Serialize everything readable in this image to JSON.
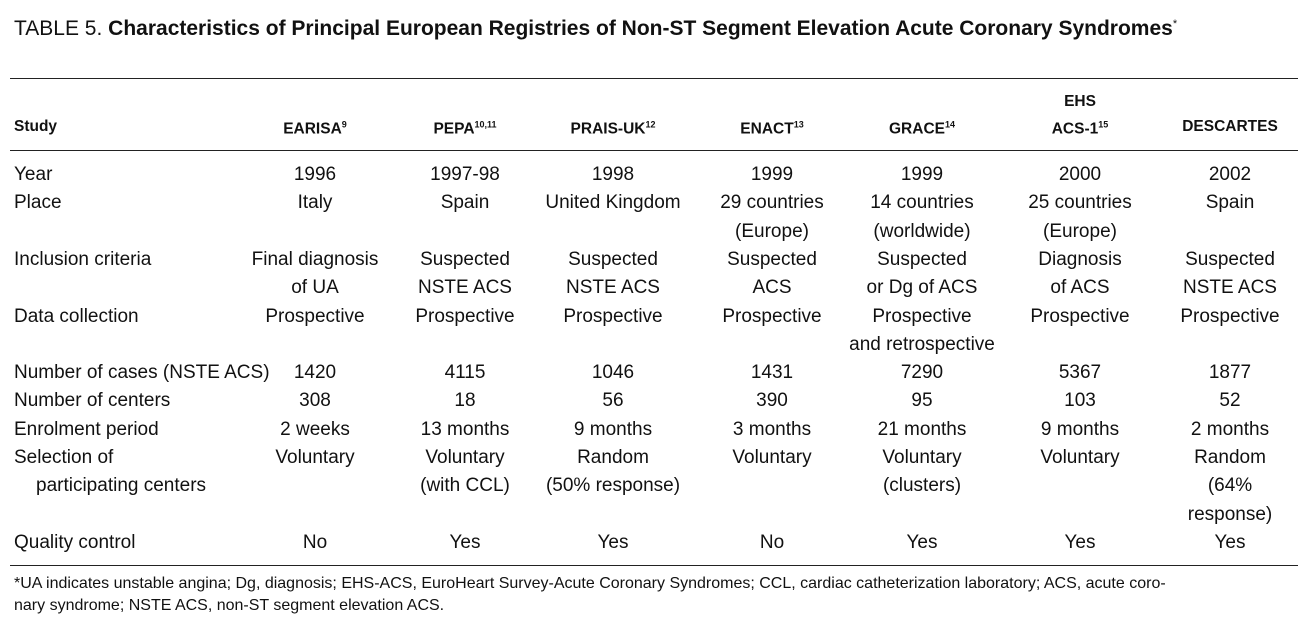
{
  "title_prefix": "TABLE 5.",
  "title": "Characteristics of Principal European Registries of Non-ST Segment Elevation Acute Coronary Syndromes",
  "title_note": "*",
  "table": {
    "header": [
      {
        "lines": [
          "Study"
        ]
      },
      {
        "lines": [
          "EARISA"
        ],
        "ref": "9"
      },
      {
        "lines": [
          "PEPA"
        ],
        "ref": "10,11"
      },
      {
        "lines": [
          "PRAIS-UK"
        ],
        "ref": "12"
      },
      {
        "lines": [
          "ENACT"
        ],
        "ref": "13"
      },
      {
        "lines": [
          "GRACE"
        ],
        "ref": "14"
      },
      {
        "lines": [
          "EHS",
          "ACS-1"
        ],
        "ref": "15"
      },
      {
        "lines": [
          "DESCARTES"
        ]
      }
    ],
    "rows": [
      [
        [
          "Year"
        ],
        [
          "1996"
        ],
        [
          "1997-98"
        ],
        [
          "1998"
        ],
        [
          "1999"
        ],
        [
          "1999"
        ],
        [
          "2000"
        ],
        [
          "2002"
        ]
      ],
      [
        [
          "Place"
        ],
        [
          "Italy"
        ],
        [
          "Spain"
        ],
        [
          "United Kingdom"
        ],
        [
          "29 countries",
          "(Europe)"
        ],
        [
          "14 countries",
          "(worldwide)"
        ],
        [
          "25 countries",
          "(Europe)"
        ],
        [
          "Spain"
        ]
      ],
      [
        [
          "Inclusion criteria"
        ],
        [
          "Final diagnosis",
          "of UA"
        ],
        [
          "Suspected",
          "NSTE ACS"
        ],
        [
          "Suspected",
          "NSTE ACS"
        ],
        [
          "Suspected",
          "ACS"
        ],
        [
          "Suspected",
          "or Dg of ACS"
        ],
        [
          "Diagnosis",
          "of ACS"
        ],
        [
          "Suspected",
          "NSTE ACS"
        ]
      ],
      [
        [
          "Data collection"
        ],
        [
          "Prospective"
        ],
        [
          "Prospective"
        ],
        [
          "Prospective"
        ],
        [
          "Prospective"
        ],
        [
          "Prospective",
          "and retrospective"
        ],
        [
          "Prospective"
        ],
        [
          "Prospective"
        ]
      ],
      [
        [
          "Number of cases (NSTE ACS)"
        ],
        [
          "1420"
        ],
        [
          "4115"
        ],
        [
          "1046"
        ],
        [
          "1431"
        ],
        [
          "7290"
        ],
        [
          "5367"
        ],
        [
          "1877"
        ]
      ],
      [
        [
          "Number of centers"
        ],
        [
          "308"
        ],
        [
          "18"
        ],
        [
          "56"
        ],
        [
          "390"
        ],
        [
          "95"
        ],
        [
          "103"
        ],
        [
          "52"
        ]
      ],
      [
        [
          "Enrolment period"
        ],
        [
          "2 weeks"
        ],
        [
          "13 months"
        ],
        [
          "9 months"
        ],
        [
          "3 months"
        ],
        [
          "21 months"
        ],
        [
          "9 months"
        ],
        [
          "2 months"
        ]
      ],
      [
        [
          "Selection of",
          "participating centers"
        ],
        [
          "Voluntary"
        ],
        [
          "Voluntary",
          "(with CCL)"
        ],
        [
          "Random",
          "(50% response)"
        ],
        [
          "Voluntary"
        ],
        [
          "Voluntary",
          "(clusters)"
        ],
        [
          "Voluntary"
        ],
        [
          "Random",
          "(64%",
          "response)"
        ]
      ],
      [
        [
          "Quality control"
        ],
        [
          "No"
        ],
        [
          "Yes"
        ],
        [
          "Yes"
        ],
        [
          "No"
        ],
        [
          "Yes"
        ],
        [
          "Yes"
        ],
        [
          "Yes"
        ]
      ]
    ]
  },
  "footnote": [
    "*UA indicates unstable angina; Dg, diagnosis; EHS-ACS, EuroHeart Survey-Acute Coronary Syndromes; CCL, cardiac catheterization laboratory; ACS, acute coro-",
    "nary syndrome; NSTE ACS, non-ST segment elevation ACS."
  ]
}
